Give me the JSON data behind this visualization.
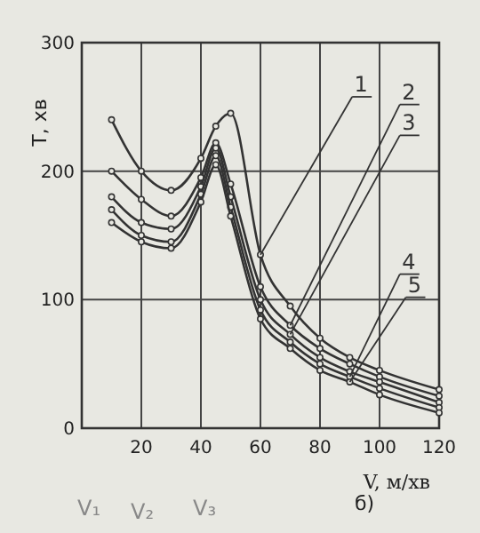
{
  "chart_data": {
    "type": "line",
    "xlabel": "V, м/хв",
    "ylabel": "T, хв",
    "xlim": [
      0,
      120
    ],
    "ylim": [
      0,
      300
    ],
    "xticks": [
      20,
      40,
      60,
      80,
      100,
      120
    ],
    "yticks": [
      0,
      100,
      200,
      300
    ],
    "grid": true,
    "legend": "top right",
    "marker": "circle",
    "line_style": "solid",
    "x": [
      10,
      20,
      30,
      40,
      45,
      50,
      60,
      70,
      80,
      90,
      100,
      120
    ],
    "series": [
      {
        "name": "1",
        "color": "#333333",
        "values": [
          240,
          200,
          185,
          210,
          235,
          245,
          135,
          95,
          70,
          55,
          45,
          30
        ]
      },
      {
        "name": "2",
        "color": "#333333",
        "values": [
          200,
          178,
          165,
          195,
          222,
          190,
          110,
          80,
          62,
          50,
          40,
          25
        ]
      },
      {
        "name": "3",
        "color": "#333333",
        "values": [
          180,
          160,
          155,
          188,
          218,
          180,
          100,
          73,
          55,
          44,
          36,
          20
        ]
      },
      {
        "name": "4",
        "color": "#333333",
        "values": [
          170,
          150,
          145,
          182,
          212,
          172,
          92,
          67,
          50,
          40,
          31,
          16
        ]
      },
      {
        "name": "5",
        "color": "#333333",
        "values": [
          160,
          145,
          140,
          176,
          205,
          165,
          85,
          62,
          45,
          36,
          26,
          12
        ]
      }
    ],
    "annotations": [
      "б)",
      "V₁",
      "V₂",
      "V₃"
    ]
  }
}
